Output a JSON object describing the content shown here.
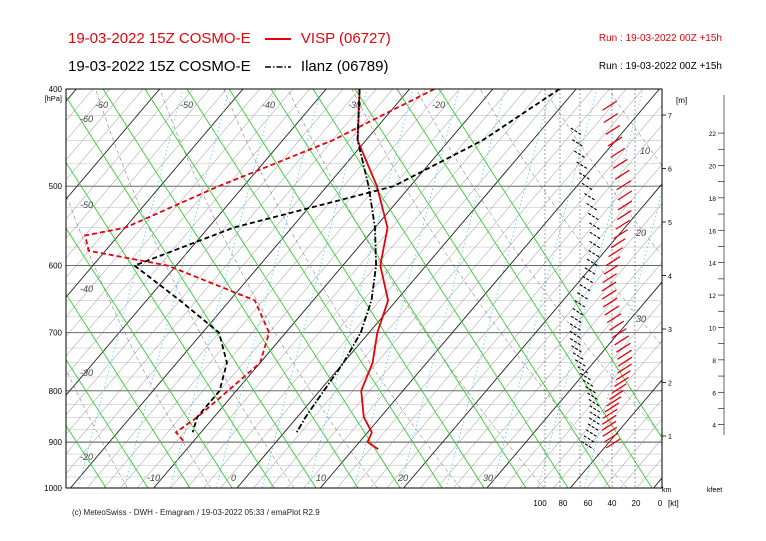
{
  "header": {
    "line1_prefix": "19-03-2022 15Z COSMO-E",
    "line1_station": "VISP (06727)",
    "line2_prefix": "19-03-2022 15Z COSMO-E",
    "line2_station": "Ilanz (06789)",
    "run1": "Run : 19-03-2022 00Z +15h",
    "run2": "Run : 19-03-2022 00Z +15h"
  },
  "footer": "(c) MeteoSwiss - DWH - Emagram / 19-03-2022  05:33 / emaPlot R2.9",
  "colors": {
    "visp": "#e8000b",
    "ilanz": "#000000",
    "dry_adiabat": "#666666",
    "moist_adiabat": "#33cc33",
    "mixing_ratio": "#66ccff",
    "isotherm": "#555555"
  },
  "chart_data": {
    "type": "line",
    "title": "Emagram",
    "y_unit_label": "[hPa]",
    "y_scale": "log",
    "ylim": [
      1000,
      400
    ],
    "pressure_ticks": [
      "400",
      "500",
      "600",
      "700",
      "800",
      "900",
      "1000"
    ],
    "isotherm_labels_top": [
      "-60",
      "-50",
      "-40",
      "-30",
      "-20"
    ],
    "isotherm_labels_left": [
      "-60",
      "-50",
      "-40",
      "-30",
      "-20"
    ],
    "isotherm_labels_bottom": [
      "-10",
      "0",
      "10",
      "20",
      "30"
    ],
    "isotherm_labels_right": [
      "10",
      "20",
      "30"
    ],
    "height_unit_label": "[m]",
    "height_ticks_km": [
      "1",
      "2",
      "3",
      "4",
      "5",
      "6",
      "7"
    ],
    "height_axis_label": "km",
    "kfeet_label": "kfeet",
    "kfeet_ticks": [
      "4",
      "6",
      "8",
      "10",
      "12",
      "14",
      "16",
      "18",
      "20",
      "22"
    ],
    "wind_axis_label": "[kt]",
    "wind_ticks": [
      "100",
      "80",
      "60",
      "40",
      "20",
      "0"
    ],
    "series": [
      {
        "name": "VISP (06727) temperature",
        "color": "#e8000b",
        "style": "solid",
        "points": [
          [
            400,
            -26
          ],
          [
            450,
            -21
          ],
          [
            500,
            -14
          ],
          [
            550,
            -8.5
          ],
          [
            600,
            -5.5
          ],
          [
            650,
            -1
          ],
          [
            700,
            1
          ],
          [
            750,
            3.5
          ],
          [
            800,
            5
          ],
          [
            850,
            8
          ],
          [
            880,
            10.5
          ],
          [
            900,
            11
          ],
          [
            915,
            13
          ]
        ]
      },
      {
        "name": "VISP (06727) dew point",
        "color": "#e8000b",
        "style": "dashed",
        "points": [
          [
            400,
            -17
          ],
          [
            450,
            -24
          ],
          [
            500,
            -33
          ],
          [
            550,
            -40
          ],
          [
            560,
            -44
          ],
          [
            580,
            -42
          ],
          [
            600,
            -31
          ],
          [
            650,
            -17
          ],
          [
            700,
            -12
          ],
          [
            750,
            -10
          ],
          [
            800,
            -11
          ],
          [
            850,
            -12
          ],
          [
            880,
            -13
          ],
          [
            900,
            -11
          ]
        ]
      },
      {
        "name": "Ilanz (06789) temperature",
        "color": "#000000",
        "style": "dashdot",
        "points": [
          [
            400,
            -26
          ],
          [
            450,
            -21
          ],
          [
            500,
            -15
          ],
          [
            550,
            -10
          ],
          [
            600,
            -6
          ],
          [
            650,
            -3
          ],
          [
            700,
            -1
          ],
          [
            750,
            0
          ],
          [
            800,
            0.5
          ],
          [
            850,
            1
          ],
          [
            880,
            1.5
          ]
        ]
      },
      {
        "name": "Ilanz (06789) dew point",
        "color": "#000000",
        "style": "dashed",
        "points": [
          [
            400,
            -2
          ],
          [
            450,
            -6
          ],
          [
            500,
            -12
          ],
          [
            550,
            -27
          ],
          [
            600,
            -35
          ],
          [
            650,
            -26
          ],
          [
            700,
            -18
          ],
          [
            750,
            -14
          ],
          [
            800,
            -12
          ],
          [
            850,
            -12
          ],
          [
            880,
            -11
          ]
        ]
      }
    ]
  }
}
